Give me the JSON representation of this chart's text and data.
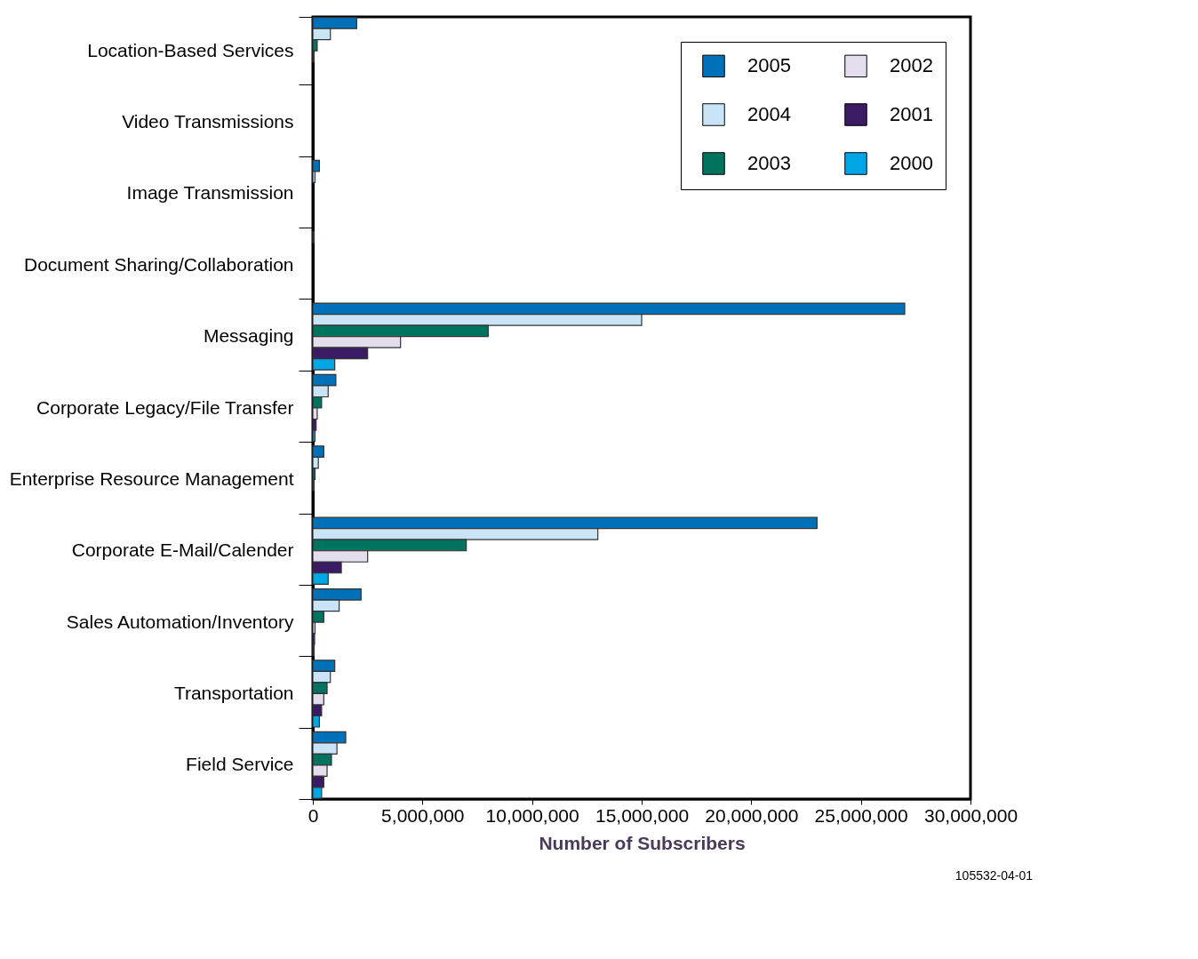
{
  "chart_data": {
    "type": "bar",
    "orientation": "horizontal",
    "xlabel": "Number of Subscribers",
    "categories": [
      "Location-Based Services",
      "Video Transmissions",
      "Image Transmission",
      "Document Sharing/Collaboration",
      "Messaging",
      "Corporate Legacy/File Transfer",
      "Enterprise Resource Management",
      "Corporate E-Mail/Calender",
      "Sales Automation/Inventory",
      "Transportation",
      "Field Service"
    ],
    "series": [
      {
        "name": "2005",
        "color": "#0070b8",
        "values": [
          2000000,
          null,
          300000,
          50000,
          27000000,
          1050000,
          500000,
          23000000,
          2200000,
          1000000,
          1500000
        ]
      },
      {
        "name": "2004",
        "color": "#c8e4f6",
        "values": [
          800000,
          null,
          100000,
          null,
          15000000,
          700000,
          250000,
          13000000,
          1200000,
          800000,
          1100000
        ]
      },
      {
        "name": "2003",
        "color": "#00735f",
        "values": [
          200000,
          null,
          null,
          null,
          8000000,
          400000,
          100000,
          7000000,
          500000,
          650000,
          850000
        ]
      },
      {
        "name": "2002",
        "color": "#e4dded",
        "values": [
          50000,
          null,
          null,
          null,
          4000000,
          200000,
          50000,
          2500000,
          100000,
          500000,
          650000
        ]
      },
      {
        "name": "2001",
        "color": "#3b1b63",
        "values": [
          null,
          null,
          null,
          null,
          2500000,
          150000,
          null,
          1300000,
          80000,
          400000,
          500000
        ]
      },
      {
        "name": "2000",
        "color": "#00a7e6",
        "values": [
          null,
          null,
          null,
          null,
          1000000,
          100000,
          null,
          700000,
          50000,
          300000,
          400000
        ]
      }
    ],
    "xlim": [
      0,
      30000000
    ],
    "xticks": [
      0,
      {
        "value": 5000000,
        "label": "5,000,000"
      },
      {
        "value": 10000000,
        "label": "10,000,000"
      },
      {
        "value": 15000000,
        "label": "15,000,000"
      },
      {
        "value": 20000000,
        "label": "20,000,000"
      },
      {
        "value": 25000000,
        "label": "25,000,000"
      },
      {
        "value": 30000000,
        "label": "30,000,000"
      }
    ],
    "grid": false,
    "legend": "top right",
    "annotations": [
      "105532-04-01"
    ]
  }
}
